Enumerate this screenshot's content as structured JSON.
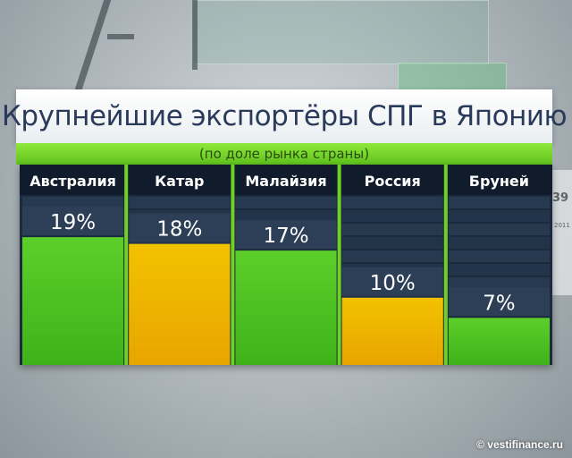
{
  "chart_data": {
    "type": "bar",
    "title": "Крупнейшие экспортёры СПГ в Японию",
    "subtitle": "(по доле рынка страны)",
    "categories": [
      "Австралия",
      "Катар",
      "Малайзия",
      "Россия",
      "Бруней"
    ],
    "values": [
      19,
      18,
      17,
      10,
      7
    ],
    "value_labels": [
      "19%",
      "18%",
      "17%",
      "10%",
      "7%"
    ],
    "unit": "%",
    "ylim": [
      0,
      25
    ],
    "bar_colors": [
      "#5ccf2a",
      "#f2c200",
      "#5ccf2a",
      "#f2c200",
      "#5ccf2a"
    ],
    "grid": false,
    "legend": "none"
  },
  "background": {
    "number": "39",
    "year": "2011"
  },
  "watermark": "© vestifinance.ru",
  "colors": {
    "panel": "#1b2a3d",
    "header_band": "#101c2b",
    "accent_green": "#6fd126",
    "title_color": "#2a3a5a"
  }
}
